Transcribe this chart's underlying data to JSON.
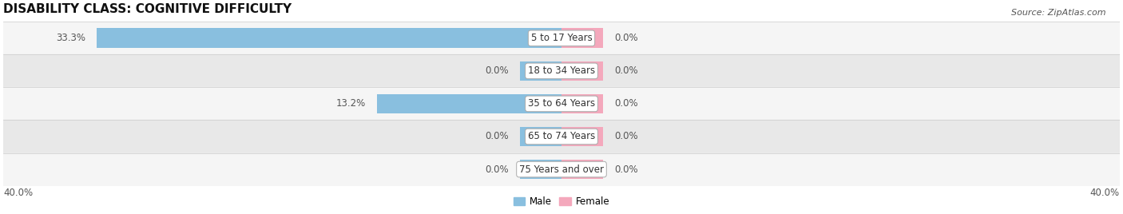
{
  "title": "DISABILITY CLASS: COGNITIVE DIFFICULTY",
  "source": "Source: ZipAtlas.com",
  "categories": [
    "5 to 17 Years",
    "18 to 34 Years",
    "35 to 64 Years",
    "65 to 74 Years",
    "75 Years and over"
  ],
  "male_values": [
    33.3,
    0.0,
    13.2,
    0.0,
    0.0
  ],
  "female_values": [
    0.0,
    0.0,
    0.0,
    0.0,
    0.0
  ],
  "male_color": "#89bfdf",
  "female_color": "#f4a8bc",
  "male_label": "Male",
  "female_label": "Female",
  "xlim": 40.0,
  "stub_size": 3.0,
  "x_axis_left_label": "40.0%",
  "x_axis_right_label": "40.0%",
  "row_bg_colors": [
    "#f5f5f5",
    "#e8e8e8"
  ],
  "row_border_color": "#cccccc",
  "title_fontsize": 11,
  "label_fontsize": 8.5,
  "value_fontsize": 8.5,
  "tick_fontsize": 8.5,
  "source_fontsize": 8
}
